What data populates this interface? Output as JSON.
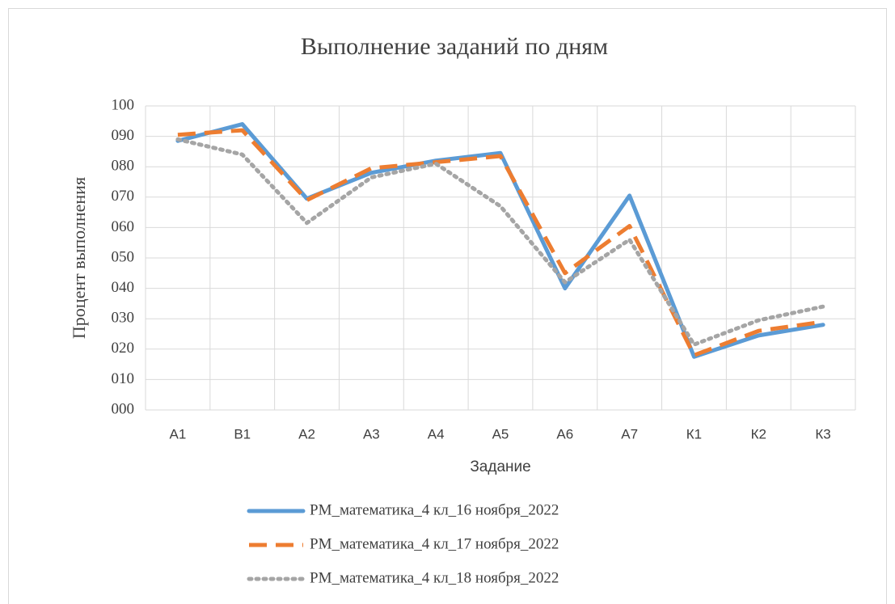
{
  "chart_data": {
    "type": "line",
    "title": "Выполнение заданий по дням",
    "x_label": "Задание",
    "y_label": "Процент выполнения",
    "categories": [
      "А1",
      "В1",
      "А2",
      "А3",
      "А4",
      "А5",
      "А6",
      "А7",
      "К1",
      "К2",
      "К3"
    ],
    "series": [
      {
        "name": "РМ_математика_4 кл_16 ноября_2022",
        "color": "#5b9bd5",
        "style": "solid",
        "values": [
          88.5,
          94,
          69.5,
          78,
          82,
          84.5,
          40,
          70.5,
          17.5,
          24.5,
          28
        ]
      },
      {
        "name": "РМ_математика_4 кл_17 ноября_2022",
        "color": "#ed7d31",
        "style": "dash",
        "values": [
          90.5,
          92,
          69,
          79.5,
          81.5,
          83.5,
          45,
          60.5,
          18,
          26,
          29
        ]
      },
      {
        "name": "РМ_математика_4 кл_18 ноября_2022",
        "color": "#a5a5a5",
        "style": "dot",
        "values": [
          89,
          84,
          61.5,
          76.5,
          81,
          67,
          42,
          56,
          21.5,
          29.5,
          34
        ]
      }
    ],
    "ylim": [
      0,
      100
    ],
    "yticks": [
      {
        "value": 0,
        "label": "000"
      },
      {
        "value": 10,
        "label": "010"
      },
      {
        "value": 20,
        "label": "020"
      },
      {
        "value": 30,
        "label": "030"
      },
      {
        "value": 40,
        "label": "040"
      },
      {
        "value": 50,
        "label": "050"
      },
      {
        "value": 60,
        "label": "060"
      },
      {
        "value": 70,
        "label": "070"
      },
      {
        "value": 80,
        "label": "080"
      },
      {
        "value": 90,
        "label": "090"
      },
      100
    ],
    "grid": true,
    "legend": "bottom"
  }
}
